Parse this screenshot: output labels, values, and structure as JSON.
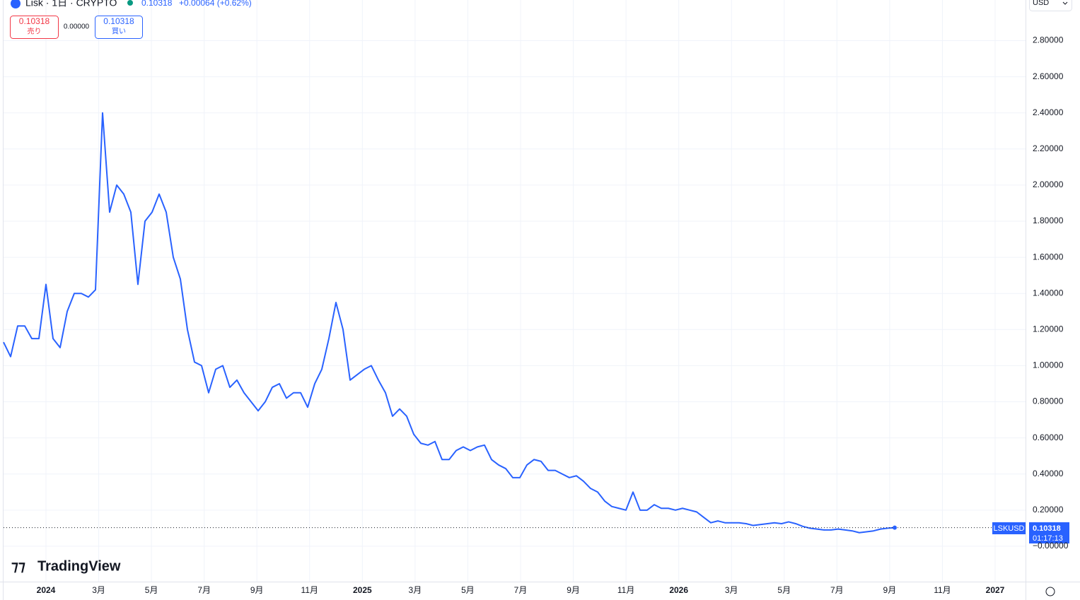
{
  "header": {
    "symbol": "Lisk · 1日 · CRYPTO",
    "price": "0.10318",
    "change": "+0.00064 (+0.62%)"
  },
  "trade": {
    "sell_price": "0.10318",
    "sell_label": "売り",
    "spread": "0.00000",
    "buy_price": "0.10318",
    "buy_label": "買い"
  },
  "currency": "USD",
  "price_tag": {
    "symbol": "LSKUSD",
    "price": "0.10318",
    "countdown": "01:17:13"
  },
  "brand": "TradingView",
  "chart_data": {
    "type": "line",
    "color": "#2962ff",
    "grid": true,
    "xticks": [
      "2024",
      "3月",
      "5月",
      "7月",
      "9月",
      "11月",
      "2025",
      "3月",
      "5月",
      "7月",
      "9月",
      "11月",
      "2026",
      "3月",
      "5月",
      "7月",
      "9月",
      "11月",
      "2027"
    ],
    "ylim": [
      -0.196,
      3.025
    ],
    "yticks": [
      {
        "value": 0,
        "label": "−0.00000"
      },
      {
        "value": 0.2,
        "label": "0.20000"
      },
      {
        "value": 0.4,
        "label": "0.40000"
      },
      {
        "value": 0.6,
        "label": "0.60000"
      },
      {
        "value": 0.8,
        "label": "0.80000"
      },
      {
        "value": 1,
        "label": "1.00000"
      },
      {
        "value": 1.2,
        "label": "1.20000"
      },
      {
        "value": 1.4,
        "label": "1.40000"
      },
      {
        "value": 1.6,
        "label": "1.60000"
      },
      {
        "value": 1.8,
        "label": "1.80000"
      },
      {
        "value": 2,
        "label": "2.00000"
      },
      {
        "value": 2.2,
        "label": "2.20000"
      },
      {
        "value": 2.4,
        "label": "2.40000"
      },
      {
        "value": 2.6,
        "label": "2.60000"
      },
      {
        "value": 2.8,
        "label": "2.80000"
      }
    ],
    "values": [
      1.13,
      1.05,
      1.22,
      1.22,
      1.15,
      1.15,
      1.45,
      1.15,
      1.1,
      1.3,
      1.4,
      1.4,
      1.38,
      1.42,
      2.4,
      1.85,
      2.0,
      1.95,
      1.85,
      1.45,
      1.8,
      1.85,
      1.95,
      1.85,
      1.6,
      1.48,
      1.2,
      1.02,
      1.0,
      0.85,
      0.98,
      1.0,
      0.88,
      0.92,
      0.85,
      0.8,
      0.75,
      0.8,
      0.88,
      0.9,
      0.82,
      0.85,
      0.85,
      0.77,
      0.9,
      0.98,
      1.15,
      1.35,
      1.2,
      0.92,
      0.95,
      0.98,
      1.0,
      0.92,
      0.85,
      0.72,
      0.76,
      0.72,
      0.62,
      0.57,
      0.56,
      0.58,
      0.48,
      0.48,
      0.53,
      0.55,
      0.53,
      0.55,
      0.56,
      0.48,
      0.45,
      0.43,
      0.38,
      0.38,
      0.45,
      0.48,
      0.47,
      0.42,
      0.42,
      0.4,
      0.38,
      0.39,
      0.36,
      0.32,
      0.3,
      0.25,
      0.22,
      0.21,
      0.2,
      0.3,
      0.2,
      0.2,
      0.23,
      0.21,
      0.21,
      0.2,
      0.21,
      0.2,
      0.19,
      0.16,
      0.13,
      0.14,
      0.13,
      0.13,
      0.13,
      0.125,
      0.115,
      0.12,
      0.125,
      0.13,
      0.125,
      0.135,
      0.125,
      0.11,
      0.1,
      0.095,
      0.09,
      0.09,
      0.095,
      0.09,
      0.085,
      0.075,
      0.08,
      0.085,
      0.095,
      0.1,
      0.103
    ]
  }
}
